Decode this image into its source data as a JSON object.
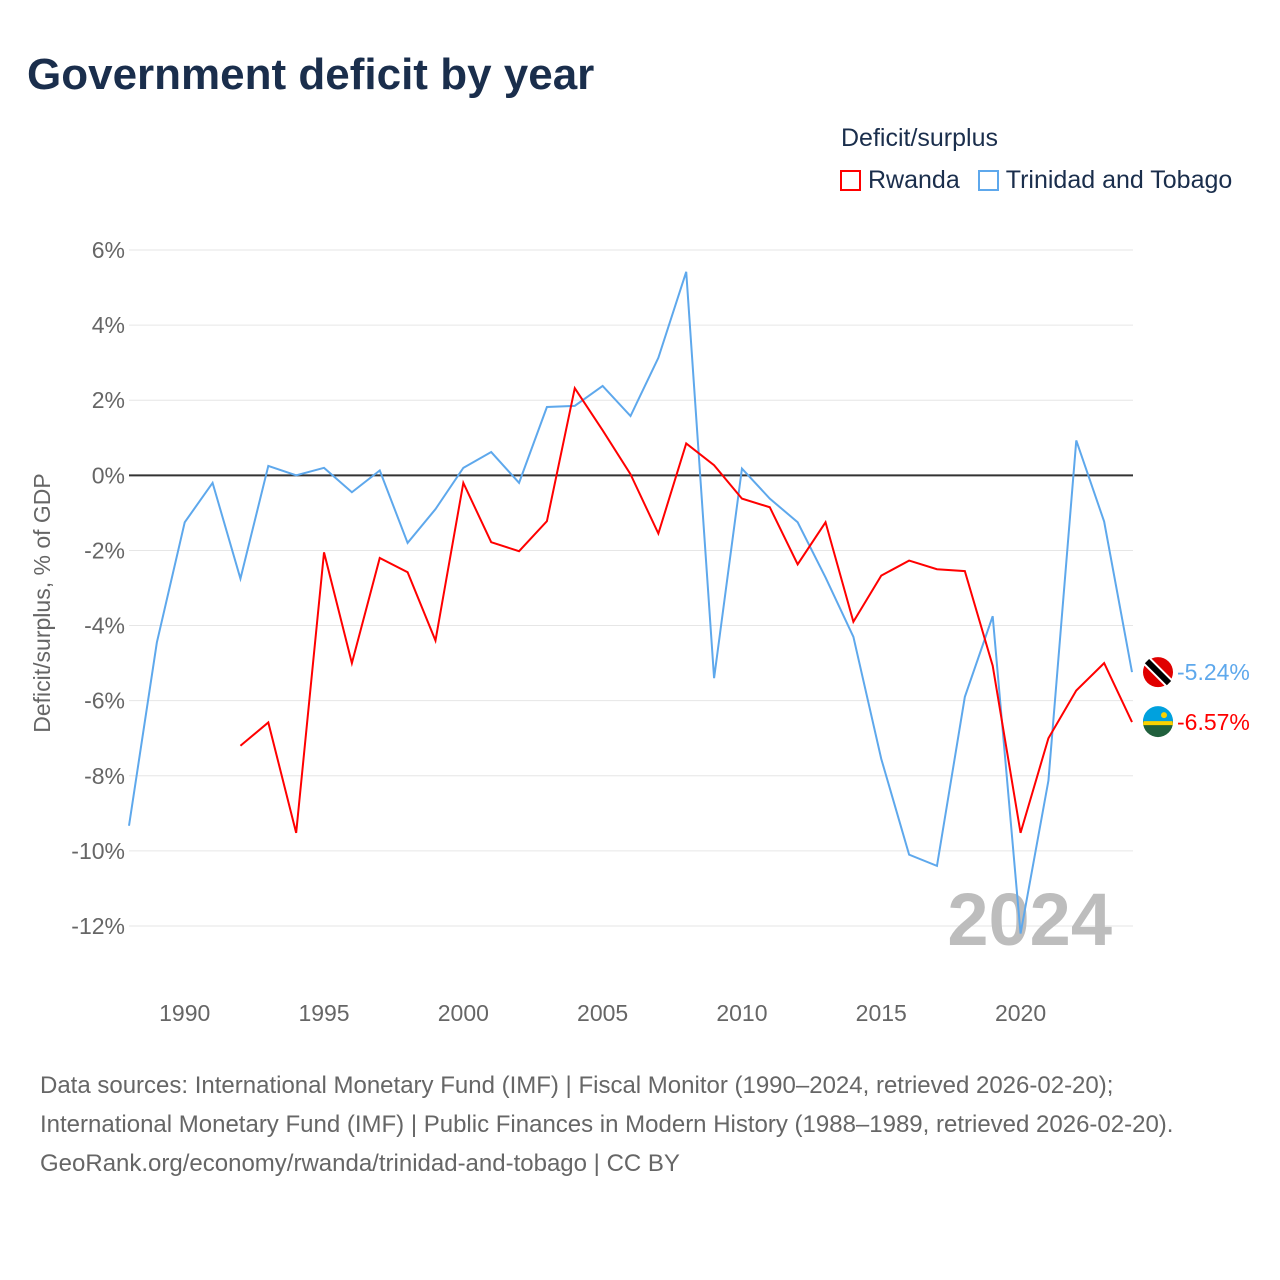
{
  "title": "Government deficit by year",
  "legend": {
    "title": "Deficit/surplus",
    "items": [
      {
        "name": "Rwanda",
        "color": "#ff0000"
      },
      {
        "name": "Trinidad and Tobago",
        "color": "#5ea8ec"
      }
    ]
  },
  "chart_data": {
    "type": "line",
    "title": "Government deficit by year",
    "xlabel": "",
    "ylabel": "Deficit/surplus, % of GDP",
    "ylim": [
      -12,
      6
    ],
    "xlim": [
      1988,
      2024
    ],
    "yticks": [
      "6%",
      "4%",
      "2%",
      "0%",
      "-2%",
      "-4%",
      "-6%",
      "-8%",
      "-10%",
      "-12%"
    ],
    "ytick_values": [
      6,
      4,
      2,
      0,
      -2,
      -4,
      -6,
      -8,
      -10,
      -12
    ],
    "xticks": [
      "1990",
      "1995",
      "2000",
      "2005",
      "2010",
      "2015",
      "2020"
    ],
    "xtick_values": [
      1990,
      1995,
      2000,
      2005,
      2010,
      2015,
      2020
    ],
    "grid": true,
    "year_watermark": "2024",
    "series": [
      {
        "name": "Trinidad and Tobago",
        "color": "#5ea8ec",
        "end_label": "-5.24%",
        "x": [
          1988,
          1989,
          1990,
          1991,
          1992,
          1993,
          1994,
          1995,
          1996,
          1997,
          1998,
          1999,
          2000,
          2001,
          2002,
          2003,
          2004,
          2005,
          2006,
          2007,
          2008,
          2009,
          2010,
          2011,
          2012,
          2013,
          2014,
          2015,
          2016,
          2017,
          2018,
          2019,
          2020,
          2021,
          2022,
          2023,
          2024
        ],
        "values": [
          -9.33,
          -4.45,
          -1.25,
          -0.2,
          -2.75,
          0.25,
          0.0,
          0.2,
          -0.45,
          0.13,
          -1.8,
          -0.9,
          0.2,
          0.62,
          -0.2,
          1.82,
          1.85,
          2.38,
          1.58,
          3.13,
          5.42,
          -5.4,
          0.18,
          -0.62,
          -1.25,
          -2.72,
          -4.3,
          -7.55,
          -10.1,
          -10.4,
          -5.9,
          -3.75,
          -12.2,
          -8.13,
          0.93,
          -1.23,
          -5.24
        ]
      },
      {
        "name": "Rwanda",
        "color": "#ff0000",
        "end_label": "-6.57%",
        "x": [
          1992,
          1993,
          1994,
          1995,
          1996,
          1997,
          1998,
          1999,
          2000,
          2001,
          2002,
          2003,
          2004,
          2005,
          2006,
          2007,
          2008,
          2009,
          2010,
          2011,
          2012,
          2013,
          2014,
          2015,
          2016,
          2017,
          2018,
          2019,
          2020,
          2021,
          2022,
          2023,
          2024
        ],
        "values": [
          -7.2,
          -6.58,
          -9.52,
          -2.05,
          -5.0,
          -2.2,
          -2.58,
          -4.4,
          -0.2,
          -1.78,
          -2.02,
          -1.22,
          2.32,
          1.2,
          0.03,
          -1.55,
          0.85,
          0.27,
          -0.62,
          -0.85,
          -2.37,
          -1.25,
          -3.9,
          -2.67,
          -2.27,
          -2.5,
          -2.55,
          -5.07,
          -9.52,
          -7.0,
          -5.73,
          -5.0,
          -6.57
        ]
      }
    ]
  },
  "footer": {
    "sources": "Data sources: International Monetary Fund (IMF) | Fiscal Monitor (1990–2024, retrieved 2026-02-20); International Monetary Fund (IMF) | Public Finances in Modern History (1988–1989, retrieved 2026-02-20).",
    "credit": "GeoRank.org/economy/rwanda/trinidad-and-tobago | CC BY"
  }
}
